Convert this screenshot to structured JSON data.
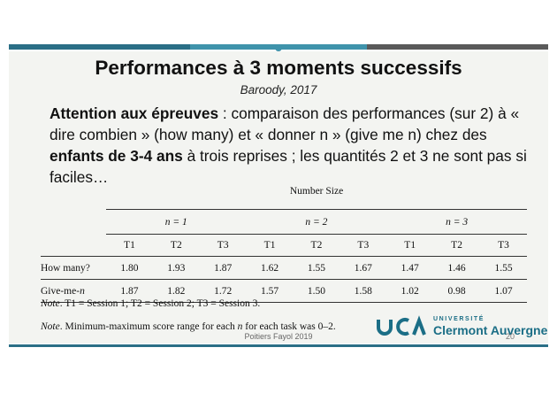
{
  "slide": {
    "title": "Performances à 3 moments successifs",
    "subtitle": "Baroody, 2017",
    "paragraph": {
      "bold_lead": "Attention aux épreuves",
      "text1": " : comparaison des performances (sur 2) à « dire combien » (how many) et « donner n » (give me n) chez des ",
      "bold_mid": "enfants de 3-4 ans",
      "text2": " à trois reprises ; les quantités 2 et 3 ne sont pas si faciles…"
    },
    "footer": "Poitiers Fayol 2019",
    "page_number": "20"
  },
  "table": {
    "caption": "Number Size",
    "groups": [
      "n = 1",
      "n = 2",
      "n = 3"
    ],
    "sessions": [
      "T1",
      "T2",
      "T3",
      "T1",
      "T2",
      "T3",
      "T1",
      "T2",
      "T3"
    ],
    "rows": [
      {
        "label": "How many?",
        "values": [
          "1.80",
          "1.93",
          "1.87",
          "1.62",
          "1.55",
          "1.67",
          "1.47",
          "1.46",
          "1.55"
        ]
      },
      {
        "label_prefix": "Give-me-",
        "label_var": "n",
        "values": [
          "1.87",
          "1.82",
          "1.72",
          "1.57",
          "1.50",
          "1.58",
          "1.02",
          "0.98",
          "1.07"
        ]
      }
    ],
    "note1_label": "Note",
    "note1_text": ". T1 = Session 1; T2 = Session 2; T3 = Session 3.",
    "note2_label": "Note",
    "note2_text_a": ". Minimum-maximum score range for each ",
    "note2_var1": "n",
    "note2_text_b": " for each task was 0–2."
  },
  "logo": {
    "university_label": "UNIVERSITÉ",
    "name": "Clermont Auvergne",
    "brand_color": "#1b6e86"
  }
}
